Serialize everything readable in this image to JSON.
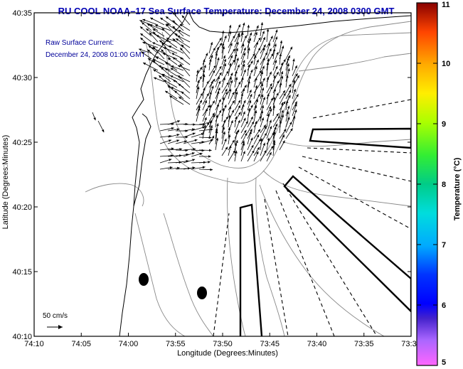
{
  "title": "RU COOL  NOAA–17  Sea Surface Temperature:  December 24, 2008 0300 GMT",
  "current_label_line1": "Raw Surface Current:",
  "current_label_line2": "December 24, 2008 01:00 GMT",
  "axes": {
    "xlabel": "Longitude (Degrees:Minutes)",
    "ylabel": "Latitude (Degrees:Minutes)",
    "x_ticks": [
      "74:10",
      "74:05",
      "74:00",
      "73:55",
      "73:50",
      "73:45",
      "73:40",
      "73:35",
      "73:3"
    ],
    "y_ticks": [
      "40:35",
      "40:30",
      "40:25",
      "40:20",
      "40:15",
      "40:10"
    ]
  },
  "colorbar": {
    "label": "Temperature (°C)",
    "ticks": [
      "11",
      "10",
      "9",
      "8",
      "7",
      "6",
      "5"
    ],
    "min": 5,
    "max": 11
  },
  "scale": {
    "label": "50 cm/s"
  },
  "colors": {
    "title": "#0000b4",
    "frame": "#000000",
    "contour": "#888888"
  }
}
